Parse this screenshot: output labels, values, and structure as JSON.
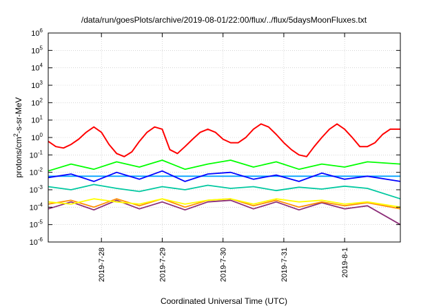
{
  "chart_data": {
    "type": "line",
    "title": "/data/run/goesPlots/archive/2019-08-01/22:00/flux/../flux/5daysMoonFluxes.txt",
    "xlabel": "Coordinated Universal Time (UTC)",
    "ylabel": "protons/cm²-s-sr-MeV",
    "ylabel_base": "protons/cm",
    "ylabel_sup": "2",
    "ylabel_rest": "-s-sr-MeV",
    "y_scale": "log",
    "ylim": [
      1e-06,
      1000000.0
    ],
    "y_ticks": [
      {
        "value": 1e-06,
        "base": "10",
        "exp": "-6"
      },
      {
        "value": 1e-05,
        "base": "10",
        "exp": "-5"
      },
      {
        "value": 0.0001,
        "base": "10",
        "exp": "-4"
      },
      {
        "value": 0.001,
        "base": "10",
        "exp": "-3"
      },
      {
        "value": 0.01,
        "base": "10",
        "exp": "-2"
      },
      {
        "value": 0.1,
        "base": "10",
        "exp": "-1"
      },
      {
        "value": 1,
        "base": "10",
        "exp": "0"
      },
      {
        "value": 10,
        "base": "10",
        "exp": "1"
      },
      {
        "value": 100,
        "base": "10",
        "exp": "2"
      },
      {
        "value": 1000,
        "base": "10",
        "exp": "3"
      },
      {
        "value": 10000,
        "base": "10",
        "exp": "4"
      },
      {
        "value": 100000,
        "base": "10",
        "exp": "5"
      },
      {
        "value": 1000000,
        "base": "10",
        "exp": "6"
      }
    ],
    "xlim": [
      "2019-07-27T03:00",
      "2019-08-01T22:00"
    ],
    "x_ticks": [
      {
        "value": "2019-07-28T00:00",
        "label": "2019-7-28"
      },
      {
        "value": "2019-07-29T00:00",
        "label": "2019-7-29"
      },
      {
        "value": "2019-07-30T00:00",
        "label": "2019-7-30"
      },
      {
        "value": "2019-07-31T00:00",
        "label": "2019-7-31"
      },
      {
        "value": "2019-08-01T00:00",
        "label": "2019-8-1"
      }
    ],
    "grid": true,
    "legend": "none",
    "series": [
      {
        "color": "#ff0000",
        "x": [
          "2019-07-27T03:00",
          "2019-07-27T06:00",
          "2019-07-27T09:00",
          "2019-07-27T12:00",
          "2019-07-27T15:00",
          "2019-07-27T18:00",
          "2019-07-27T21:00",
          "2019-07-28T00:00",
          "2019-07-28T03:00",
          "2019-07-28T06:00",
          "2019-07-28T09:00",
          "2019-07-28T12:00",
          "2019-07-28T15:00",
          "2019-07-28T18:00",
          "2019-07-28T21:00",
          "2019-07-29T00:00",
          "2019-07-29T03:00",
          "2019-07-29T06:00",
          "2019-07-29T09:00",
          "2019-07-29T12:00",
          "2019-07-29T15:00",
          "2019-07-29T18:00",
          "2019-07-29T21:00",
          "2019-07-30T00:00",
          "2019-07-30T03:00",
          "2019-07-30T06:00",
          "2019-07-30T09:00",
          "2019-07-30T12:00",
          "2019-07-30T15:00",
          "2019-07-30T18:00",
          "2019-07-30T21:00",
          "2019-07-31T00:00",
          "2019-07-31T03:00",
          "2019-07-31T06:00",
          "2019-07-31T09:00",
          "2019-07-31T12:00",
          "2019-07-31T15:00",
          "2019-07-31T18:00",
          "2019-07-31T21:00",
          "2019-08-01T00:00",
          "2019-08-01T03:00",
          "2019-08-01T06:00",
          "2019-08-01T09:00",
          "2019-08-01T12:00",
          "2019-08-01T15:00",
          "2019-08-01T18:00",
          "2019-08-01T22:00"
        ],
        "y": [
          0.6,
          0.3,
          0.25,
          0.4,
          0.8,
          2,
          4,
          2,
          0.4,
          0.12,
          0.08,
          0.15,
          0.6,
          2,
          4,
          3,
          0.2,
          0.12,
          0.3,
          0.8,
          2,
          3,
          2,
          0.8,
          0.5,
          0.5,
          1,
          3,
          6,
          4,
          1.5,
          0.5,
          0.2,
          0.1,
          0.08,
          0.3,
          1,
          3,
          6,
          3,
          1,
          0.3,
          0.3,
          0.5,
          1.5,
          3,
          3
        ]
      },
      {
        "color": "#00ff00",
        "x": [
          "2019-07-27T03:00",
          "2019-07-27T12:00",
          "2019-07-27T21:00",
          "2019-07-28T06:00",
          "2019-07-28T15:00",
          "2019-07-29T00:00",
          "2019-07-29T09:00",
          "2019-07-29T18:00",
          "2019-07-30T03:00",
          "2019-07-30T12:00",
          "2019-07-30T21:00",
          "2019-07-31T06:00",
          "2019-07-31T15:00",
          "2019-08-01T00:00",
          "2019-08-01T09:00",
          "2019-08-01T22:00"
        ],
        "y": [
          0.012,
          0.03,
          0.015,
          0.04,
          0.02,
          0.05,
          0.015,
          0.03,
          0.05,
          0.02,
          0.04,
          0.015,
          0.03,
          0.02,
          0.04,
          0.03
        ]
      },
      {
        "color": "#0000ff",
        "x": [
          "2019-07-27T03:00",
          "2019-07-27T12:00",
          "2019-07-27T21:00",
          "2019-07-28T06:00",
          "2019-07-28T15:00",
          "2019-07-29T00:00",
          "2019-07-29T09:00",
          "2019-07-29T18:00",
          "2019-07-30T03:00",
          "2019-07-30T12:00",
          "2019-07-30T21:00",
          "2019-07-31T06:00",
          "2019-07-31T15:00",
          "2019-08-01T00:00",
          "2019-08-01T09:00",
          "2019-08-01T22:00"
        ],
        "y": [
          0.005,
          0.008,
          0.003,
          0.01,
          0.004,
          0.012,
          0.003,
          0.008,
          0.01,
          0.004,
          0.007,
          0.003,
          0.009,
          0.004,
          0.006,
          0.003
        ]
      },
      {
        "color": "#00a0ff",
        "x": [
          "2019-07-27T03:00",
          "2019-07-27T12:00",
          "2019-07-27T21:00",
          "2019-07-28T06:00",
          "2019-07-28T15:00",
          "2019-07-29T00:00",
          "2019-07-29T09:00",
          "2019-07-29T18:00",
          "2019-07-30T03:00",
          "2019-07-30T12:00",
          "2019-07-30T21:00",
          "2019-07-31T06:00",
          "2019-07-31T15:00",
          "2019-08-01T00:00",
          "2019-08-01T09:00",
          "2019-08-01T22:00"
        ],
        "y": [
          0.006,
          0.006,
          0.006,
          0.006,
          0.006,
          0.006,
          0.006,
          0.006,
          0.006,
          0.006,
          0.006,
          0.006,
          0.006,
          0.006,
          0.006,
          0.006
        ]
      },
      {
        "color": "#00c8a0",
        "x": [
          "2019-07-27T03:00",
          "2019-07-27T12:00",
          "2019-07-27T21:00",
          "2019-07-28T06:00",
          "2019-07-28T15:00",
          "2019-07-29T00:00",
          "2019-07-29T09:00",
          "2019-07-29T18:00",
          "2019-07-30T03:00",
          "2019-07-30T12:00",
          "2019-07-30T21:00",
          "2019-07-31T06:00",
          "2019-07-31T15:00",
          "2019-08-01T00:00",
          "2019-08-01T09:00",
          "2019-08-01T22:00"
        ],
        "y": [
          0.0015,
          0.001,
          0.002,
          0.0012,
          0.0008,
          0.0015,
          0.001,
          0.0018,
          0.0012,
          0.0015,
          0.0009,
          0.0014,
          0.0011,
          0.0016,
          0.0012,
          0.0003
        ]
      },
      {
        "color": "#ffff00",
        "x": [
          "2019-07-27T03:00",
          "2019-07-27T12:00",
          "2019-07-27T21:00",
          "2019-07-28T06:00",
          "2019-07-28T15:00",
          "2019-07-29T00:00",
          "2019-07-29T09:00",
          "2019-07-29T18:00",
          "2019-07-30T03:00",
          "2019-07-30T12:00",
          "2019-07-30T21:00",
          "2019-07-31T06:00",
          "2019-07-31T15:00",
          "2019-08-01T00:00",
          "2019-08-01T09:00",
          "2019-08-01T22:00"
        ],
        "y": [
          0.0002,
          0.00015,
          0.0003,
          0.0002,
          0.00015,
          0.0003,
          0.00015,
          0.00025,
          0.0003,
          0.00015,
          0.0003,
          0.0002,
          0.00025,
          0.00015,
          0.0002,
          0.0001
        ]
      },
      {
        "color": "#ff8c00",
        "x": [
          "2019-07-27T03:00",
          "2019-07-27T12:00",
          "2019-07-27T21:00",
          "2019-07-28T06:00",
          "2019-07-28T15:00",
          "2019-07-29T00:00",
          "2019-07-29T09:00",
          "2019-07-29T18:00",
          "2019-07-30T03:00",
          "2019-07-30T12:00",
          "2019-07-30T21:00",
          "2019-07-31T06:00",
          "2019-07-31T15:00",
          "2019-08-01T00:00",
          "2019-08-01T09:00",
          "2019-08-01T22:00"
        ],
        "y": [
          0.00015,
          0.00025,
          0.0001,
          0.0003,
          0.00012,
          0.0003,
          0.0001,
          0.00025,
          0.0003,
          0.00012,
          0.00025,
          0.0001,
          0.0002,
          0.00012,
          0.00018,
          8e-05
        ]
      },
      {
        "color": "#8c2d78",
        "x": [
          "2019-07-27T03:00",
          "2019-07-27T12:00",
          "2019-07-27T21:00",
          "2019-07-28T06:00",
          "2019-07-28T15:00",
          "2019-07-29T00:00",
          "2019-07-29T09:00",
          "2019-07-29T18:00",
          "2019-07-30T03:00",
          "2019-07-30T12:00",
          "2019-07-30T21:00",
          "2019-07-31T06:00",
          "2019-07-31T15:00",
          "2019-08-01T00:00",
          "2019-08-01T09:00",
          "2019-08-01T22:00"
        ],
        "y": [
          8e-05,
          0.0002,
          7e-05,
          0.00025,
          8e-05,
          0.0002,
          7e-05,
          0.0002,
          0.00025,
          8e-05,
          0.0002,
          7e-05,
          0.00018,
          8e-05,
          0.00012,
          1e-05
        ]
      }
    ]
  }
}
